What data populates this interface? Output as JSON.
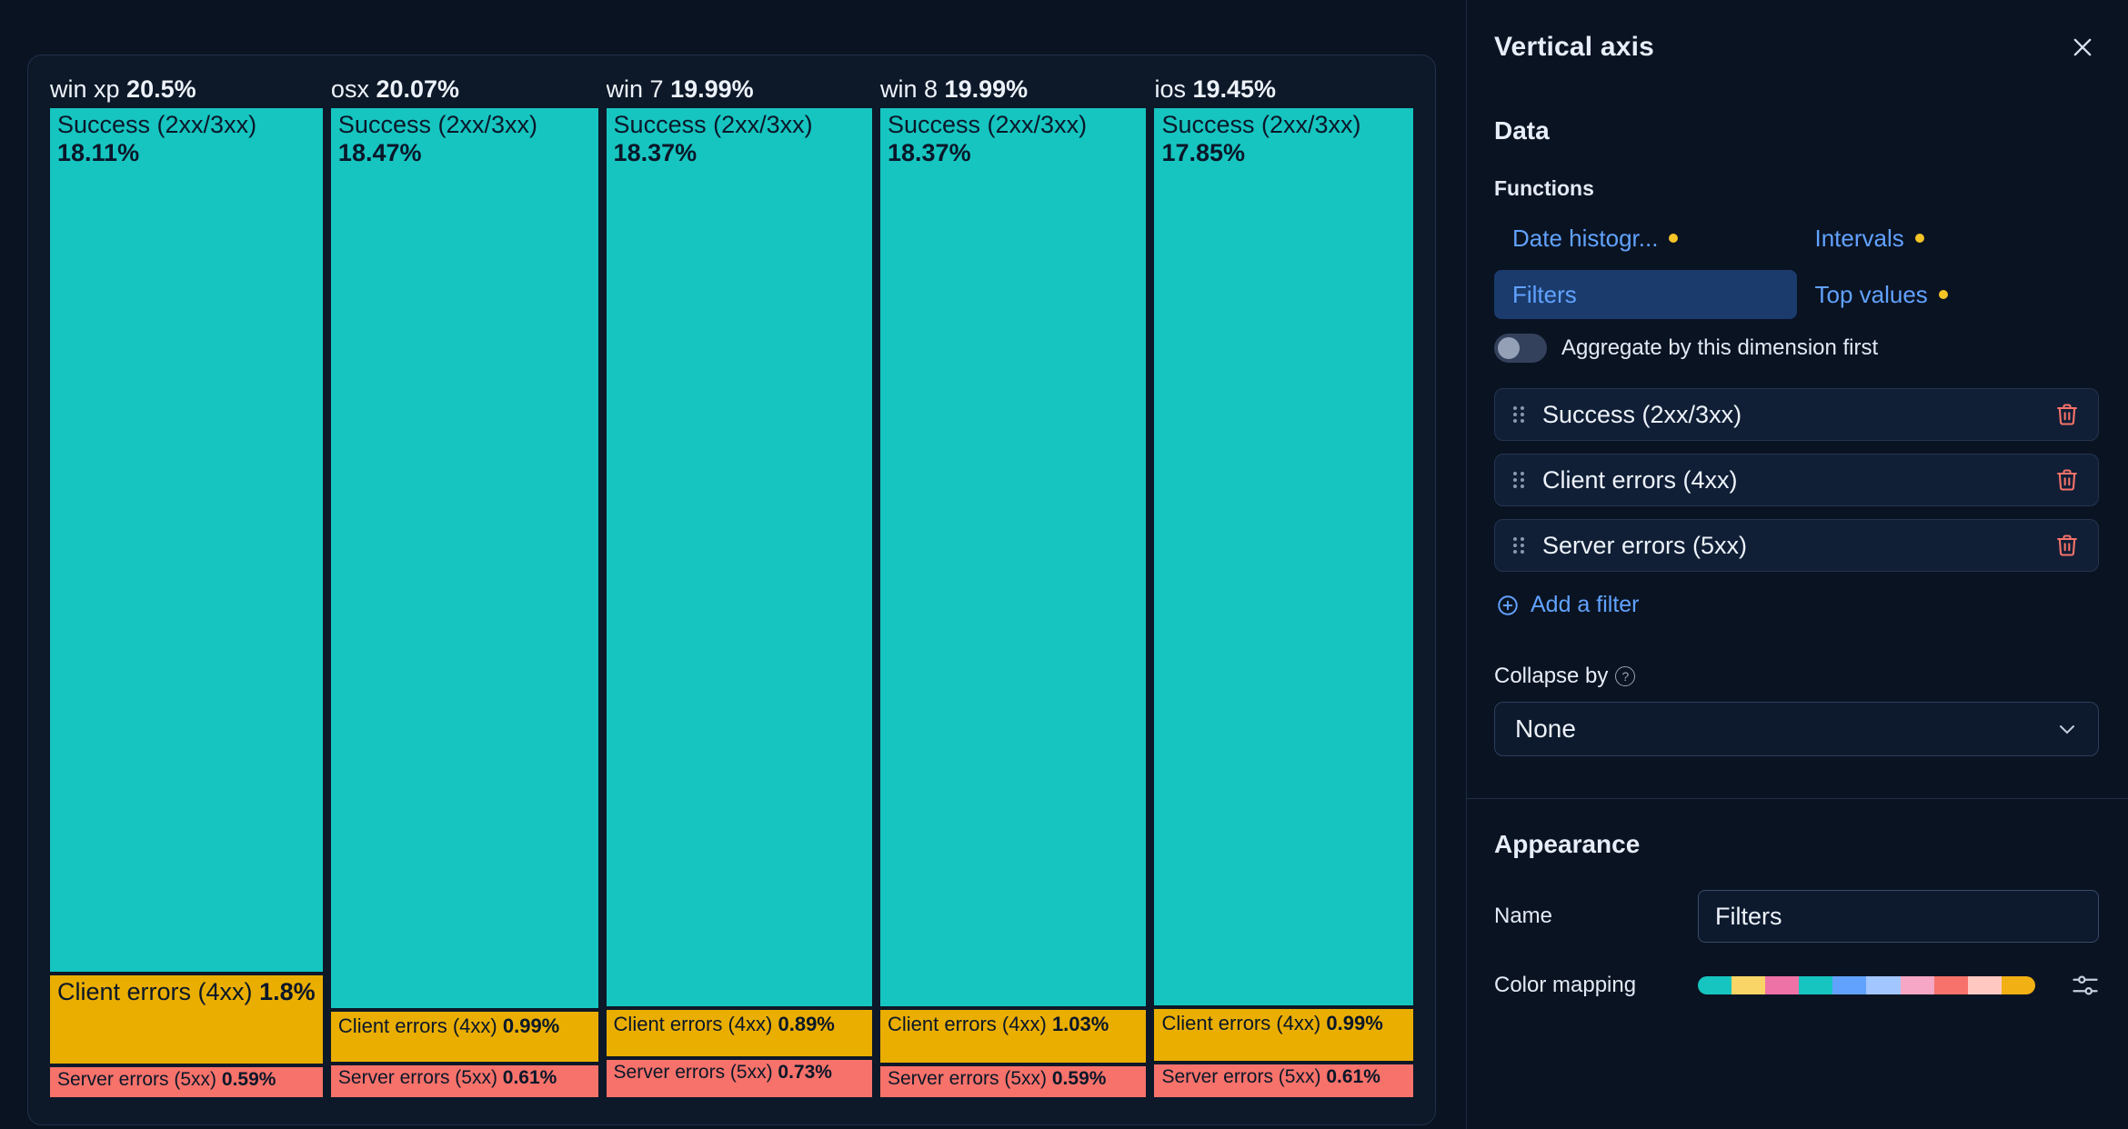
{
  "colors": {
    "accent_blue": "#61A2FF",
    "selected_pill_bg": "#1A3B6C",
    "warning_dot": "#F5C426",
    "danger": "#F6726A",
    "tile_success": "#16C5C0",
    "tile_client": "#EAAE01",
    "tile_server": "#F6726A",
    "palette_strip": [
      "#16C5C0",
      "#F8D566",
      "#EE72A6",
      "#16C5C0",
      "#61A2FF",
      "#A2C6FF",
      "#F5A7C5",
      "#F6726A",
      "#FFC9C2",
      "#F1B014"
    ]
  },
  "chart_data": {
    "type": "mosaic",
    "title": "",
    "legend": "none",
    "categories": [
      "win xp",
      "osx",
      "win 7",
      "win 8",
      "ios"
    ],
    "category_totals_pct": [
      20.5,
      20.07,
      19.99,
      19.99,
      19.45
    ],
    "series": [
      {
        "name": "Success (2xx/3xx)",
        "values_pct": [
          18.11,
          18.47,
          18.37,
          18.37,
          17.85
        ]
      },
      {
        "name": "Client errors (4xx)",
        "values_pct": [
          1.8,
          0.99,
          0.89,
          1.03,
          0.99
        ]
      },
      {
        "name": "Server errors (5xx)",
        "values_pct": [
          0.59,
          0.61,
          0.73,
          0.59,
          0.61
        ]
      }
    ],
    "columns": [
      {
        "name": "win xp",
        "pct": "20.5%",
        "total": 20.5,
        "tiles": [
          {
            "label": "Success (2xx/3xx)",
            "pct": "18.11%",
            "value": 18.11
          },
          {
            "label": "Client errors (4xx)",
            "pct": "1.8%",
            "value": 1.8
          },
          {
            "label": "Server errors (5xx)",
            "pct": "0.59%",
            "value": 0.59
          }
        ]
      },
      {
        "name": "osx",
        "pct": "20.07%",
        "total": 20.07,
        "tiles": [
          {
            "label": "Success (2xx/3xx)",
            "pct": "18.47%",
            "value": 18.47
          },
          {
            "label": "Client errors (4xx)",
            "pct": "0.99%",
            "value": 0.99
          },
          {
            "label": "Server errors (5xx)",
            "pct": "0.61%",
            "value": 0.61
          }
        ]
      },
      {
        "name": "win 7",
        "pct": "19.99%",
        "total": 19.99,
        "tiles": [
          {
            "label": "Success (2xx/3xx)",
            "pct": "18.37%",
            "value": 18.37
          },
          {
            "label": "Client errors (4xx)",
            "pct": "0.89%",
            "value": 0.89
          },
          {
            "label": "Server errors (5xx)",
            "pct": "0.73%",
            "value": 0.73
          }
        ]
      },
      {
        "name": "win 8",
        "pct": "19.99%",
        "total": 19.99,
        "tiles": [
          {
            "label": "Success (2xx/3xx)",
            "pct": "18.37%",
            "value": 18.37
          },
          {
            "label": "Client errors (4xx)",
            "pct": "1.03%",
            "value": 1.03
          },
          {
            "label": "Server errors (5xx)",
            "pct": "0.59%",
            "value": 0.59
          }
        ]
      },
      {
        "name": "ios",
        "pct": "19.45%",
        "total": 19.45,
        "tiles": [
          {
            "label": "Success (2xx/3xx)",
            "pct": "17.85%",
            "value": 17.85
          },
          {
            "label": "Client errors (4xx)",
            "pct": "0.99%",
            "value": 0.99
          },
          {
            "label": "Server errors (5xx)",
            "pct": "0.61%",
            "value": 0.61
          }
        ]
      }
    ]
  },
  "panel": {
    "title": "Vertical axis",
    "data_section": {
      "heading": "Data",
      "functions_label": "Functions",
      "functions": [
        {
          "label": "Date histogr...",
          "has_dot": true,
          "selected": false
        },
        {
          "label": "Intervals",
          "has_dot": true,
          "selected": false
        },
        {
          "label": "Filters",
          "has_dot": false,
          "selected": true
        },
        {
          "label": "Top values",
          "has_dot": true,
          "selected": false
        }
      ],
      "aggregate_toggle_label": "Aggregate by this dimension first",
      "aggregate_toggle_state": "off",
      "filters": [
        "Success (2xx/3xx)",
        "Client errors (4xx)",
        "Server errors (5xx)"
      ],
      "add_filter_label": "Add a filter",
      "collapse_by_label": "Collapse by",
      "collapse_by_help": "?",
      "collapse_by_value": "None"
    },
    "appearance_section": {
      "heading": "Appearance",
      "name_label": "Name",
      "name_value": "Filters",
      "color_mapping_label": "Color mapping"
    }
  }
}
